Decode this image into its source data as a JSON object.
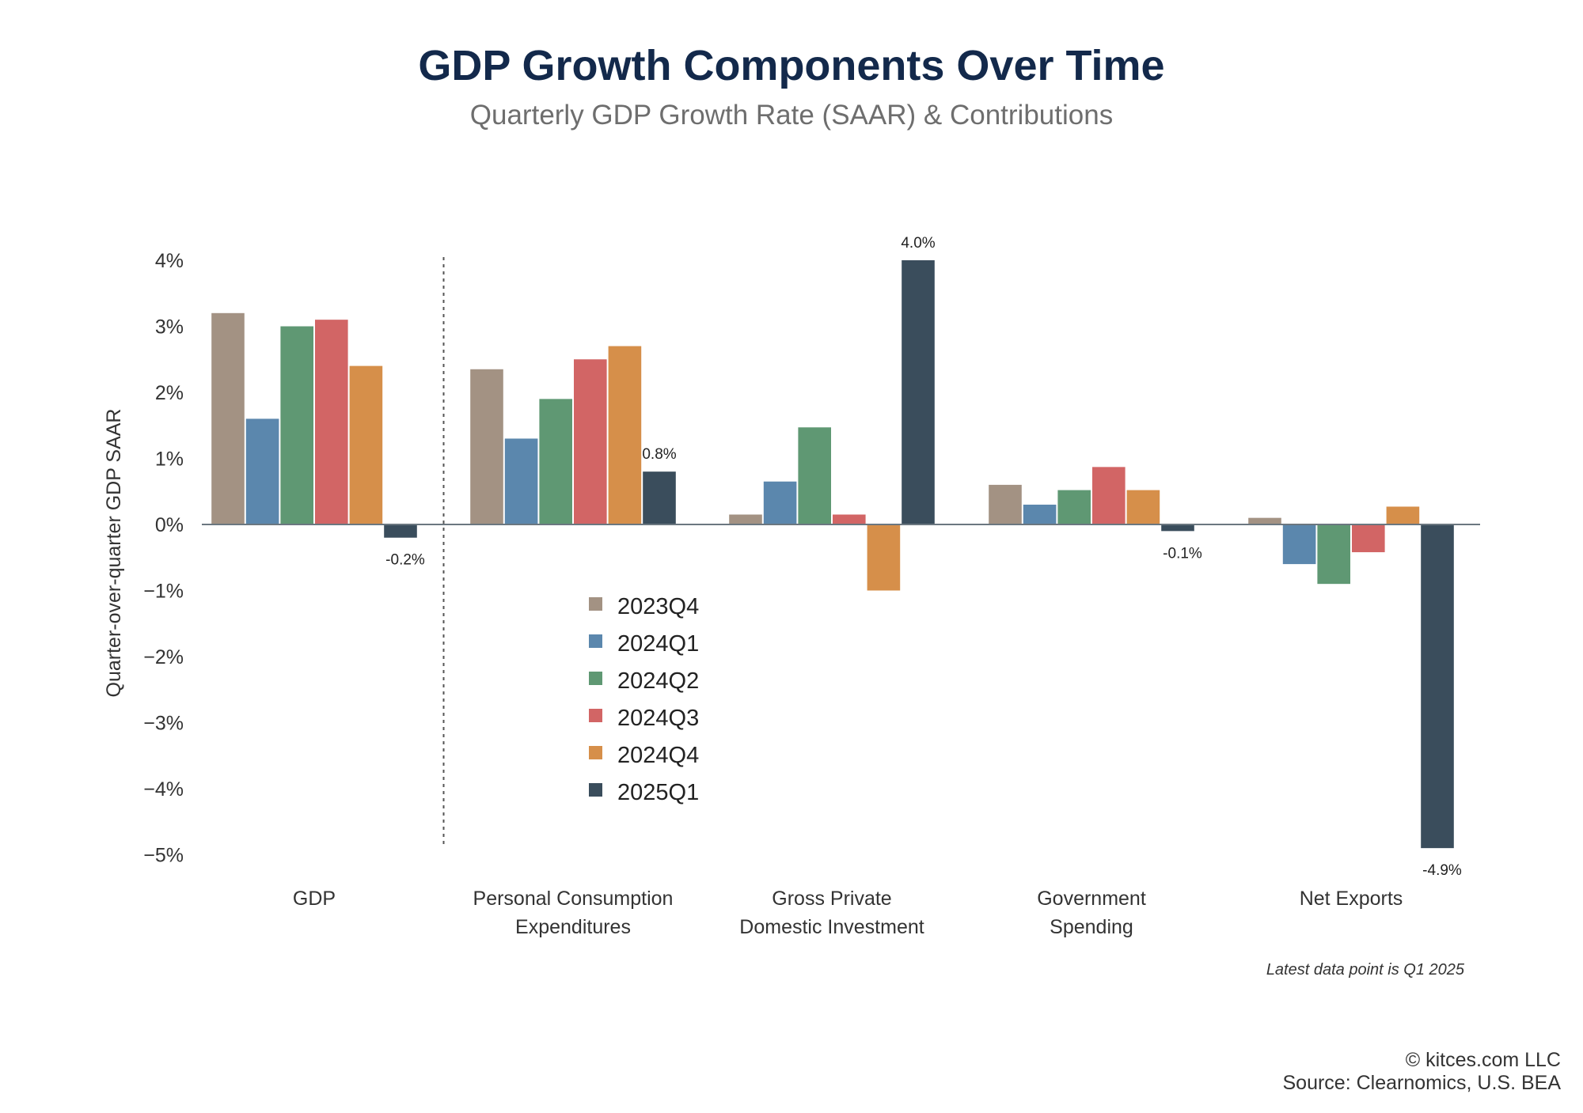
{
  "title": "GDP Growth Components Over Time",
  "subtitle": "Quarterly GDP Growth Rate (SAAR) & Contributions",
  "footnote": "Latest data point is Q1 2025",
  "credits": [
    "© kitces.com LLC",
    "Source: Clearnomics, U.S. BEA"
  ],
  "chart_data": {
    "type": "bar",
    "ylabel": "Quarter-over-quarter GDP SAAR",
    "ylim": [
      -5,
      4
    ],
    "yticks": [
      "4%",
      "3%",
      "2%",
      "1%",
      "0%",
      "−1%",
      "−2%",
      "−3%",
      "−4%",
      "−5%"
    ],
    "ytick_values": [
      4,
      3,
      2,
      1,
      0,
      -1,
      -2,
      -3,
      -4,
      -5
    ],
    "categories": [
      [
        "GDP"
      ],
      [
        "Personal Consumption",
        "Expenditures"
      ],
      [
        "Gross Private",
        "Domestic Investment"
      ],
      [
        "Government",
        "Spending"
      ],
      [
        "Net Exports"
      ]
    ],
    "legend_placement": "center",
    "series": [
      {
        "name": "2023Q4",
        "color": "#a39283",
        "values": [
          3.2,
          2.35,
          0.15,
          0.6,
          0.1
        ]
      },
      {
        "name": "2024Q1",
        "color": "#5b87ad",
        "values": [
          1.6,
          1.3,
          0.65,
          0.3,
          -0.6
        ]
      },
      {
        "name": "2024Q2",
        "color": "#5f9873",
        "values": [
          3.0,
          1.9,
          1.47,
          0.52,
          -0.9
        ]
      },
      {
        "name": "2024Q3",
        "color": "#d26565",
        "values": [
          3.1,
          2.5,
          0.15,
          0.87,
          -0.42
        ]
      },
      {
        "name": "2024Q4",
        "color": "#d68f4a",
        "values": [
          2.4,
          2.7,
          -1.0,
          0.52,
          0.27
        ]
      },
      {
        "name": "2025Q1",
        "color": "#3a4d5c",
        "values": [
          -0.2,
          0.8,
          4.0,
          -0.1,
          -4.9
        ]
      }
    ],
    "data_labels": [
      {
        "series": "2025Q1",
        "category": 0,
        "text": "-0.2%"
      },
      {
        "series": "2025Q1",
        "category": 1,
        "text": "0.8%"
      },
      {
        "series": "2025Q1",
        "category": 2,
        "text": "4.0%"
      },
      {
        "series": "2025Q1",
        "category": 3,
        "text": "-0.1%"
      },
      {
        "series": "2025Q1",
        "category": 4,
        "text": "-4.9%"
      }
    ],
    "grid": false,
    "separator_after_category": 0
  }
}
